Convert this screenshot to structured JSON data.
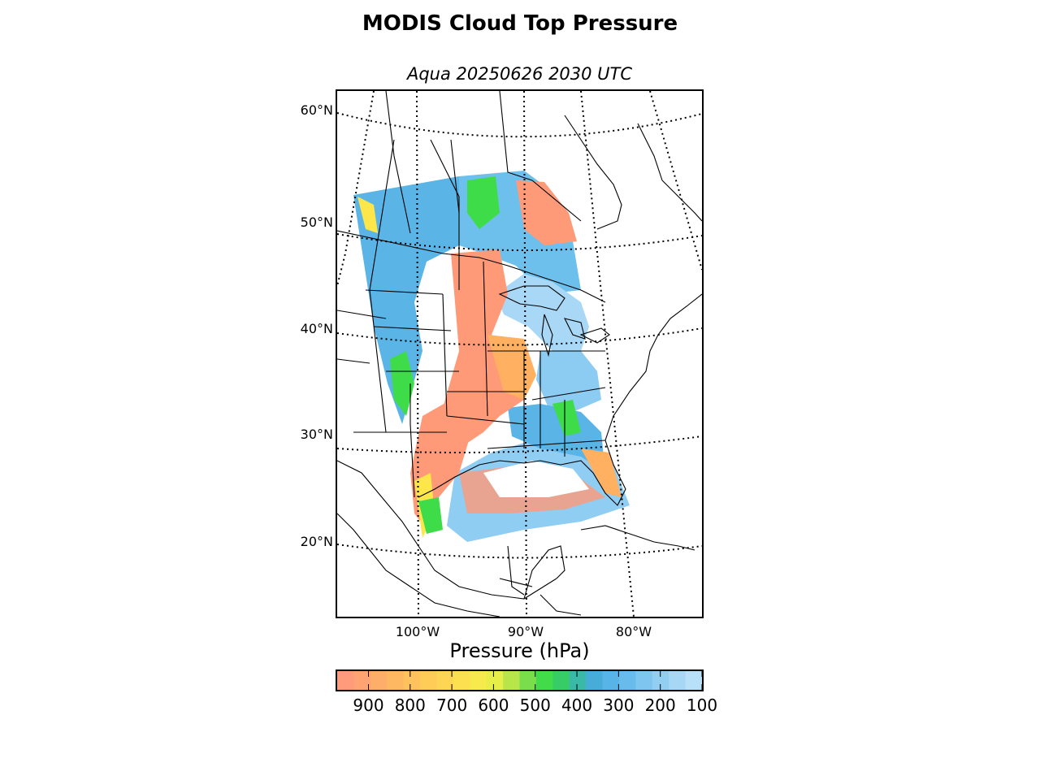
{
  "figure": {
    "title": "MODIS Cloud Top Pressure",
    "subtitle": "Aqua 20250626 2030 UTC"
  },
  "map": {
    "latitude_labels": [
      "60°N",
      "50°N",
      "40°N",
      "30°N",
      "20°N"
    ],
    "longitude_labels": [
      "100°W",
      "90°W",
      "80°W"
    ],
    "graticule_style": "dotted",
    "cloud_field_colors": {
      "low": "#ff9a78",
      "mid_low": "#ffb060",
      "mid": "#fde64a",
      "green": "#3fdc4a",
      "high": "#5ab4e6",
      "very_high": "#a8d8f6"
    }
  },
  "colorbar": {
    "label": "Pressure (hPa)",
    "ticks": [
      "900",
      "800",
      "700",
      "600",
      "500",
      "400",
      "300",
      "200",
      "100"
    ],
    "range": [
      975,
      100
    ],
    "colors": [
      "#ff9a7a",
      "#ffa472",
      "#ffae6a",
      "#ffb862",
      "#ffc25c",
      "#ffcc58",
      "#ffd654",
      "#fde050",
      "#f6ea4c",
      "#e6ee48",
      "#b8e64a",
      "#7ade4c",
      "#42dc4a",
      "#38cc66",
      "#3ab8a8",
      "#48acd8",
      "#58b4e6",
      "#68bcec",
      "#7ec6f0",
      "#92cef2",
      "#a6d8f6",
      "#b8e0f8"
    ]
  }
}
